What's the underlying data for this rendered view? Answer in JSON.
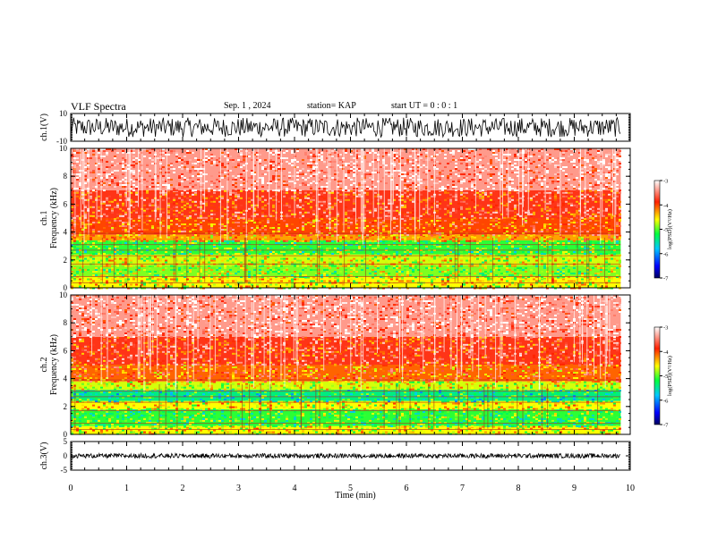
{
  "header": {
    "title": "VLF Spectra",
    "date": "Sep. 1 , 2024",
    "station": "station= KAP",
    "start_ut": "start  UT =   0 : 0  : 1"
  },
  "chart_data": [
    {
      "type": "line",
      "name": "ch1-waveform",
      "ylabel": "ch.1(V)",
      "ylim": [
        -10,
        10
      ],
      "yticks": [
        "10",
        "-10"
      ],
      "xlim": [
        0,
        10
      ],
      "x_data_end": 9.83,
      "amplitude_range": [
        -7,
        7
      ],
      "color": "#000000"
    },
    {
      "type": "heatmap",
      "name": "ch1-spectrogram",
      "ylabel": "ch.1\nFrequency (kHz)",
      "ylim": [
        0,
        10
      ],
      "yticks": [
        "0",
        "2",
        "4",
        "6",
        "8",
        "10"
      ],
      "xlim": [
        0,
        10
      ],
      "x_data_end": 9.83,
      "bands_khz": [
        {
          "from": 0.0,
          "to": 0.8,
          "level": -4.6
        },
        {
          "from": 0.8,
          "to": 1.6,
          "level": -4.9
        },
        {
          "from": 1.6,
          "to": 2.4,
          "level": -4.7
        },
        {
          "from": 2.4,
          "to": 3.4,
          "level": -5.1
        },
        {
          "from": 3.4,
          "to": 3.8,
          "level": -4.3
        },
        {
          "from": 3.8,
          "to": 5.0,
          "level": -4.0
        },
        {
          "from": 5.0,
          "to": 7.0,
          "level": -3.8
        },
        {
          "from": 7.0,
          "to": 10.0,
          "level": -3.4
        }
      ],
      "colorbar": {
        "label": "log(PSD)(V²/Hz)",
        "range": [
          -7,
          -3
        ],
        "ticks": [
          "-3",
          "-4",
          "-5",
          "-6",
          "-7"
        ]
      }
    },
    {
      "type": "heatmap",
      "name": "ch2-spectrogram",
      "ylabel": "ch.2\nFrequency (kHz)",
      "ylim": [
        0,
        10
      ],
      "yticks": [
        "0",
        "2",
        "4",
        "6",
        "8",
        "10"
      ],
      "xlim": [
        0,
        10
      ],
      "x_data_end": 9.83,
      "bands_khz": [
        {
          "from": 0.0,
          "to": 0.6,
          "level": -4.6
        },
        {
          "from": 0.6,
          "to": 1.8,
          "level": -5.1
        },
        {
          "from": 1.8,
          "to": 2.4,
          "level": -4.6
        },
        {
          "from": 2.4,
          "to": 3.2,
          "level": -5.4
        },
        {
          "from": 3.2,
          "to": 3.8,
          "level": -4.7
        },
        {
          "from": 3.8,
          "to": 5.0,
          "level": -4.1
        },
        {
          "from": 5.0,
          "to": 7.0,
          "level": -3.8
        },
        {
          "from": 7.0,
          "to": 10.0,
          "level": -3.4
        }
      ],
      "colorbar": {
        "label": "log(PSD)(V²/Hz)",
        "range": [
          -7,
          -3
        ],
        "ticks": [
          "-3",
          "-4",
          "-5",
          "-6",
          "-7"
        ]
      }
    },
    {
      "type": "line",
      "name": "ch3-waveform",
      "ylabel": "ch.3(V)",
      "ylim": [
        -5,
        5
      ],
      "yticks": [
        "5",
        "0",
        "-5"
      ],
      "xlim": [
        0,
        10
      ],
      "x_data_end": 9.83,
      "amplitude_range": [
        -0.8,
        0.8
      ],
      "color": "#000000"
    }
  ],
  "xaxis": {
    "label": "Time (min)",
    "ticks": [
      "0",
      "1",
      "2",
      "3",
      "4",
      "5",
      "6",
      "7",
      "8",
      "9",
      "10"
    ]
  }
}
